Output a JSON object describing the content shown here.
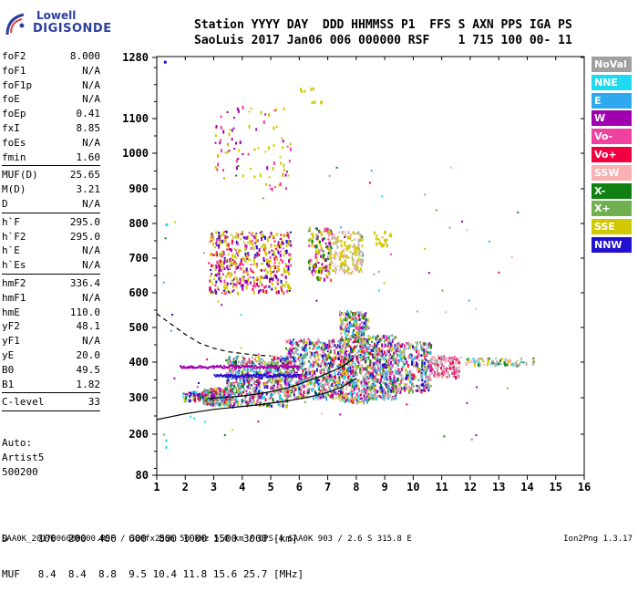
{
  "logo": {
    "line1": "Lowell",
    "line2": "DIGISONDE"
  },
  "header": {
    "line1": "Station YYYY DAY  DDD HHMMSS P1  FFS S AXN PPS IGA PS",
    "line2": "SaoLuis 2017 Jan06 006 000000 RSF    1 715 100 00- 11"
  },
  "params": [
    {
      "k": "foF2",
      "v": "8.000"
    },
    {
      "k": "foF1",
      "v": "N/A"
    },
    {
      "k": "foF1p",
      "v": "N/A"
    },
    {
      "k": "foE",
      "v": "N/A"
    },
    {
      "k": "foEp",
      "v": "0.41"
    },
    {
      "k": "fxI",
      "v": "8.85"
    },
    {
      "k": "foEs",
      "v": "N/A"
    },
    {
      "k": "fmin",
      "v": "1.60"
    },
    {
      "sep": true
    },
    {
      "k": "MUF(D)",
      "v": "25.65"
    },
    {
      "k": "M(D)",
      "v": "3.21"
    },
    {
      "k": "D",
      "v": "N/A"
    },
    {
      "sep": true
    },
    {
      "k": "h`F",
      "v": "295.0"
    },
    {
      "k": "h`F2",
      "v": "295.0"
    },
    {
      "k": "h`E",
      "v": "N/A"
    },
    {
      "k": "h`Es",
      "v": "N/A"
    },
    {
      "sep": true
    },
    {
      "k": "hmF2",
      "v": "336.4"
    },
    {
      "k": "hmF1",
      "v": "N/A"
    },
    {
      "k": "hmE",
      "v": "110.0"
    },
    {
      "k": "yF2",
      "v": "48.1"
    },
    {
      "k": "yF1",
      "v": "N/A"
    },
    {
      "k": "yE",
      "v": "20.0"
    },
    {
      "k": "B0",
      "v": "49.5"
    },
    {
      "k": "B1",
      "v": "1.82"
    },
    {
      "sep": true
    },
    {
      "k": "C-level",
      "v": "33"
    },
    {
      "sep": true
    }
  ],
  "notes": [
    "Auto:",
    "Artist5",
    "500200"
  ],
  "legend": [
    {
      "label": "NoVal",
      "color": "#a0a0a0"
    },
    {
      "label": "NNE",
      "color": "#20d8f0"
    },
    {
      "label": "E",
      "color": "#30a8f0"
    },
    {
      "label": "W",
      "color": "#a000b0"
    },
    {
      "label": "Vo-",
      "color": "#f040a0"
    },
    {
      "label": "Vo+",
      "color": "#f00040"
    },
    {
      "label": "SSW",
      "color": "#f8b0b0"
    },
    {
      "label": "X-",
      "color": "#108010"
    },
    {
      "label": "X+",
      "color": "#70b050"
    },
    {
      "label": "SSE",
      "color": "#d0c800"
    },
    {
      "label": "NNW",
      "color": "#2010d0"
    }
  ],
  "bottom": {
    "line1": "D     100  200  400  600  800 1000 1500 3000 [km]",
    "line2": "MUF   8.4  8.4  8.8  9.5 10.4 11.8 15.6 25.7 [MHz]"
  },
  "footer": "SAA0K_2017006000000.RSF / 300fx256h 50 kHz 5.0 km / DPS-4 SAA0K 903 / 2.6 S 315.8 E",
  "version": "Ion2Png 1.3.17",
  "chart_data": {
    "type": "scatter",
    "title": "",
    "xlabel": "",
    "ylabel": "",
    "x_ticks": [
      1,
      2,
      3,
      4,
      5,
      6,
      7,
      8,
      9,
      10,
      11,
      12,
      13,
      14,
      15,
      16
    ],
    "y_ticks": [
      80,
      200,
      300,
      400,
      500,
      600,
      700,
      800,
      900,
      1000,
      1100,
      1280
    ],
    "xlim": [
      1,
      16
    ],
    "ylim": [
      80,
      1280
    ],
    "grid": false,
    "legend_position": "right",
    "traces": [
      {
        "name": "O-trace dashed profile",
        "style": "dashed",
        "x": [
          1.0,
          1.5,
          2.0,
          2.5,
          3.0,
          3.5,
          4.0,
          4.5,
          5.0
        ],
        "y": [
          540,
          510,
          480,
          455,
          440,
          430,
          425,
          420,
          418
        ]
      },
      {
        "name": "True height profile",
        "style": "solid",
        "x": [
          1.0,
          1.5,
          2.0,
          2.5,
          3.0,
          3.5,
          4.0,
          4.5,
          5.0,
          5.5,
          6.0,
          6.5,
          7.0,
          7.5,
          8.0
        ],
        "y": [
          240,
          248,
          256,
          262,
          268,
          272,
          276,
          280,
          285,
          290,
          297,
          305,
          315,
          330,
          355
        ]
      },
      {
        "name": "Model trace",
        "style": "solid",
        "x": [
          2.8,
          3.2,
          3.6,
          4.0,
          4.4,
          4.8,
          5.2,
          5.6,
          6.0,
          6.4,
          6.8,
          7.2,
          7.6,
          7.9
        ],
        "y": [
          298,
          300,
          302,
          305,
          309,
          314,
          320,
          328,
          338,
          350,
          362,
          376,
          392,
          410
        ]
      }
    ]
  }
}
